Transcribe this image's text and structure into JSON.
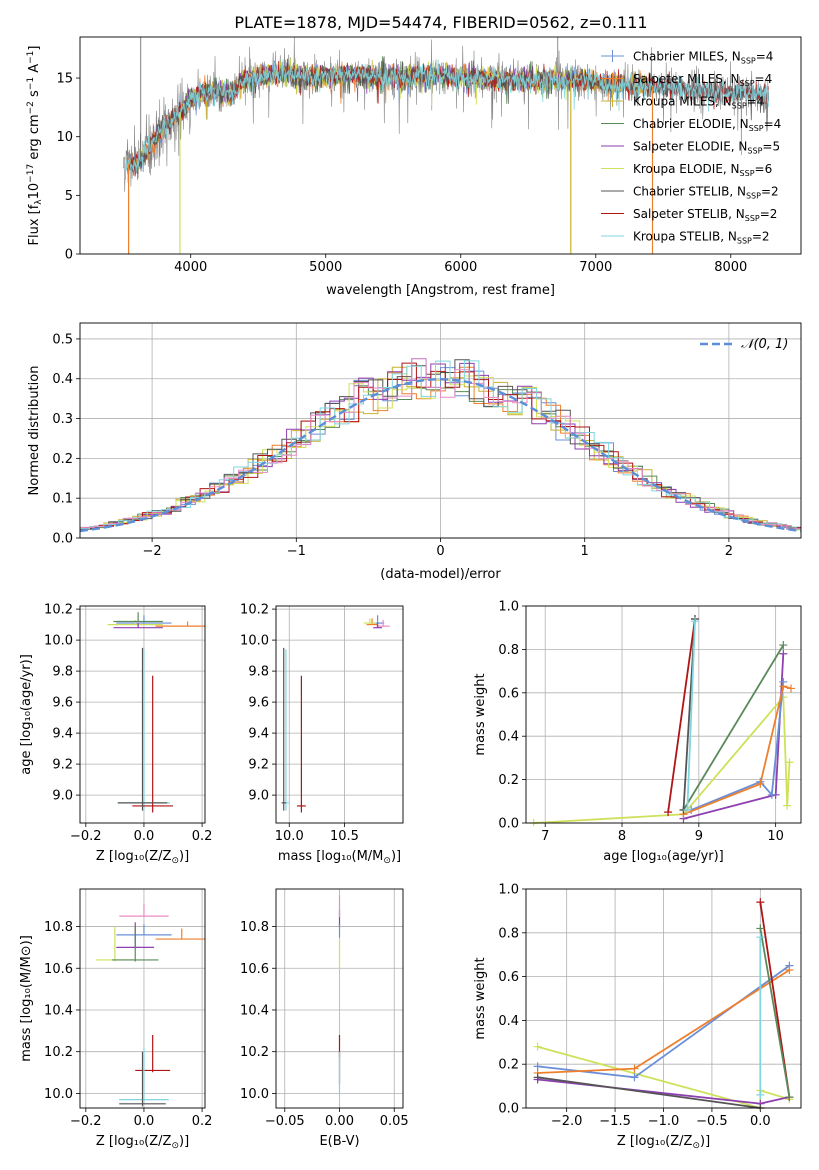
{
  "figure": {
    "title": "PLATE=1878, MJD=54474, FIBERID=0562, z=0.111"
  },
  "colors": {
    "chabrier_miles": "#6a8fd8",
    "salpeter_miles": "#ee7f2d",
    "kroupa_miles": "#c9b12e",
    "chabrier_elodie": "#5a8a5a",
    "salpeter_elodie": "#8e3fb0",
    "kroupa_elodie": "#cfe05a",
    "chabrier_stelib": "#555555",
    "salpeter_stelib": "#b01515",
    "kroupa_stelib": "#7fd6e0",
    "pink": "#e88bc4",
    "grid": "#b0b0b0",
    "normal": "#5b8fd9"
  },
  "chart_data": [
    {
      "type": "line",
      "id": "spectrum",
      "title": "PLATE=1878, MJD=54474, FIBERID=0562, z=0.111",
      "xlabel": "wavelength [Angstrom, rest frame]",
      "ylabel_main": "Flux [f",
      "ylabel_sub": "λ",
      "ylabel_rest": "10",
      "ylabel_exp": "−17",
      "ylabel_units": " erg cm",
      "ylabel_units_exp": "−2",
      "ylabel_units2": " s",
      "ylabel_units2_exp": "−1",
      "ylabel_units3": " A",
      "ylabel_units3_exp": "−1",
      "ylabel_close": "]",
      "xlim": [
        3180,
        8520
      ],
      "ylim": [
        0,
        18.5
      ],
      "xticks": [
        4000,
        5000,
        6000,
        7000,
        8000
      ],
      "yticks": [
        0,
        5,
        10,
        15
      ],
      "legend_position": "right",
      "legend": [
        {
          "label": "Chabrier MILES, N",
          "sub": "SSP",
          "suffix": "=4",
          "color_key": "chabrier_miles",
          "marker": "+"
        },
        {
          "label": "Salpeter MILES, N",
          "sub": "SSP",
          "suffix": "=4",
          "color_key": "salpeter_miles",
          "marker": "+"
        },
        {
          "label": "Kroupa MILES, N",
          "sub": "SSP",
          "suffix": "=4",
          "color_key": "kroupa_miles",
          "marker": "+"
        },
        {
          "label": "Chabrier ELODIE, N",
          "sub": "SSP",
          "suffix": "=4",
          "color_key": "chabrier_elodie",
          "marker": ""
        },
        {
          "label": "Salpeter ELODIE, N",
          "sub": "SSP",
          "suffix": "=5",
          "color_key": "salpeter_elodie",
          "marker": ""
        },
        {
          "label": "Kroupa ELODIE, N",
          "sub": "SSP",
          "suffix": "=6",
          "color_key": "kroupa_elodie",
          "marker": ""
        },
        {
          "label": "Chabrier STELIB, N",
          "sub": "SSP",
          "suffix": "=2",
          "color_key": "chabrier_stelib",
          "marker": ""
        },
        {
          "label": "Salpeter STELIB, N",
          "sub": "SSP",
          "suffix": "=2",
          "color_key": "salpeter_stelib",
          "marker": ""
        },
        {
          "label": "Kroupa STELIB, N",
          "sub": "SSP",
          "suffix": "=2",
          "color_key": "kroupa_stelib",
          "marker": ""
        }
      ],
      "continuum": [
        [
          3500,
          7.8
        ],
        [
          3600,
          7.6
        ],
        [
          3700,
          9.2
        ],
        [
          3800,
          10.8
        ],
        [
          3900,
          11.8
        ],
        [
          4000,
          13.2
        ],
        [
          4100,
          13.8
        ],
        [
          4200,
          13.9
        ],
        [
          4300,
          13.6
        ],
        [
          4400,
          14.8
        ],
        [
          4500,
          15.2
        ],
        [
          4700,
          15.4
        ],
        [
          4900,
          15.1
        ],
        [
          5100,
          15.3
        ],
        [
          5300,
          15.2
        ],
        [
          5500,
          15.1
        ],
        [
          5700,
          15.2
        ],
        [
          5900,
          15.1
        ],
        [
          6100,
          15.0
        ],
        [
          6300,
          14.9
        ],
        [
          6500,
          14.8
        ],
        [
          6700,
          14.9
        ],
        [
          6900,
          14.7
        ],
        [
          7100,
          14.5
        ],
        [
          7300,
          14.4
        ],
        [
          7500,
          14.2
        ],
        [
          7700,
          14.0
        ],
        [
          7900,
          13.8
        ],
        [
          8100,
          13.7
        ],
        [
          8280,
          13.5
        ]
      ],
      "dropouts": [
        {
          "x": 3540,
          "color_key": "salpeter_miles"
        },
        {
          "x": 3920,
          "color_key": "kroupa_elodie"
        },
        {
          "x": 6815,
          "color_key": "kroupa_miles"
        },
        {
          "x": 7420,
          "color_key": "salpeter_miles"
        }
      ],
      "spike": {
        "x": 6718,
        "ymax": 18.5
      }
    },
    {
      "type": "area",
      "id": "residuals",
      "xlabel": "(data-model)/error",
      "ylabel": "Normed distribution",
      "xlim": [
        -2.5,
        2.5
      ],
      "ylim": [
        0,
        0.54
      ],
      "xticks": [
        -2,
        -1,
        0,
        1,
        2
      ],
      "yticks": [
        0,
        0.1,
        0.2,
        0.3,
        0.4,
        0.5
      ],
      "legend": {
        "label": "𝒩(0, 1)",
        "position": "top-right"
      },
      "bin_width": 0.1,
      "series_count": 10
    },
    {
      "type": "scatter",
      "id": "age_vs_Z",
      "xlabel": "Z [log₁₀(Z/Z",
      "xlabel_sub": "⊙",
      "xlabel_close": ")]",
      "ylabel": "age  [log₁₀(age/yr)]",
      "xlim": [
        -0.22,
        0.21
      ],
      "ylim": [
        8.82,
        10.22
      ],
      "xticks": [
        -0.2,
        0.0,
        0.2
      ],
      "yticks": [
        9.0,
        9.2,
        9.4,
        9.6,
        9.8,
        10.0,
        10.2
      ],
      "points": [
        {
          "x": 0.0,
          "y": 10.11,
          "xerr": 0.19,
          "yerr": 0.05,
          "color_key": "chabrier_miles"
        },
        {
          "x": 0.15,
          "y": 10.09,
          "xerr": 0.22,
          "yerr": 0.03,
          "color_key": "salpeter_miles"
        },
        {
          "x": -0.03,
          "y": 10.1,
          "xerr": 0.19,
          "yerr": 0.03,
          "color_key": "kroupa_elodie"
        },
        {
          "x": -0.02,
          "y": 10.12,
          "xerr": 0.17,
          "yerr": 0.06,
          "color_key": "chabrier_elodie"
        },
        {
          "x": -0.02,
          "y": 10.08,
          "xerr": 0.17,
          "yerr": 0.03,
          "color_key": "salpeter_elodie"
        },
        {
          "x": 0.0,
          "y": 8.95,
          "xerr": 0.18,
          "yerr": 0.99,
          "color_key": "kroupa_stelib"
        },
        {
          "x": 0.03,
          "y": 8.93,
          "xerr": 0.14,
          "yerr": 0.84,
          "color_key": "salpeter_stelib"
        },
        {
          "x": -0.005,
          "y": 8.95,
          "xerr": 0.17,
          "yerr": 1.0,
          "color_key": "chabrier_stelib"
        }
      ]
    },
    {
      "type": "scatter",
      "id": "age_vs_mass",
      "xlabel": "mass [log₁₀(M/M",
      "xlabel_sub": "⊙",
      "xlabel_close": ")]",
      "ylabel": "",
      "xlim": [
        9.88,
        11.03
      ],
      "ylim": [
        8.82,
        10.22
      ],
      "xticks": [
        10.0,
        10.5
      ],
      "yticks": [
        9.0,
        9.2,
        9.4,
        9.6,
        9.8,
        10.0,
        10.2
      ],
      "points": [
        {
          "x": 10.8,
          "y": 10.11,
          "xerr": 0.12,
          "yerr": 0.05,
          "color_key": "chabrier_miles"
        },
        {
          "x": 10.75,
          "y": 10.1,
          "xerr": 0.1,
          "yerr": 0.04,
          "color_key": "salpeter_miles"
        },
        {
          "x": 10.85,
          "y": 10.09,
          "xerr": 0.12,
          "yerr": 0.04,
          "color_key": "pink"
        },
        {
          "x": 10.73,
          "y": 10.11,
          "xerr": 0.11,
          "yerr": 0.03,
          "color_key": "kroupa_elodie"
        },
        {
          "x": 10.8,
          "y": 10.08,
          "xerr": 0.08,
          "yerr": 0.03,
          "color_key": "salpeter_elodie"
        },
        {
          "x": 9.97,
          "y": 8.95,
          "xerr": 0.05,
          "yerr": 0.99,
          "color_key": "kroupa_stelib"
        },
        {
          "x": 10.11,
          "y": 8.93,
          "xerr": 0.08,
          "yerr": 0.84,
          "color_key": "salpeter_stelib"
        },
        {
          "x": 9.95,
          "y": 8.95,
          "xerr": 0.04,
          "yerr": 1.0,
          "color_key": "chabrier_stelib"
        }
      ]
    },
    {
      "type": "line",
      "id": "weight_vs_age",
      "xlabel": "age  [log₁₀(age/yr)]",
      "ylabel": "mass weight",
      "xlim": [
        6.75,
        10.33
      ],
      "ylim": [
        0,
        1.0
      ],
      "xticks": [
        7,
        8,
        9,
        10
      ],
      "yticks": [
        0.0,
        0.2,
        0.4,
        0.6,
        0.8,
        1.0
      ],
      "series": [
        {
          "color_key": "kroupa_elodie",
          "points": [
            [
              6.85,
              0.0
            ],
            [
              8.8,
              0.04
            ],
            [
              10.1,
              0.58
            ],
            [
              10.15,
              0.08
            ],
            [
              10.18,
              0.28
            ]
          ]
        },
        {
          "color_key": "salpeter_elodie",
          "points": [
            [
              8.8,
              0.02
            ],
            [
              10.0,
              0.13
            ],
            [
              10.1,
              0.78
            ]
          ]
        },
        {
          "color_key": "chabrier_elodie",
          "points": [
            [
              8.8,
              0.06
            ],
            [
              10.1,
              0.82
            ]
          ]
        },
        {
          "color_key": "chabrier_miles",
          "points": [
            [
              8.9,
              0.06
            ],
            [
              9.8,
              0.19
            ],
            [
              9.95,
              0.13
            ],
            [
              10.1,
              0.65
            ]
          ]
        },
        {
          "color_key": "salpeter_miles",
          "points": [
            [
              8.8,
              0.04
            ],
            [
              9.8,
              0.18
            ],
            [
              10.1,
              0.63
            ],
            [
              10.2,
              0.62
            ]
          ]
        },
        {
          "color_key": "salpeter_stelib",
          "points": [
            [
              8.6,
              0.05
            ],
            [
              8.95,
              0.94
            ]
          ]
        },
        {
          "color_key": "chabrier_stelib",
          "points": [
            [
              8.8,
              0.06
            ],
            [
              8.95,
              0.94
            ]
          ]
        },
        {
          "color_key": "kroupa_stelib",
          "points": [
            [
              8.85,
              0.06
            ],
            [
              8.95,
              0.93
            ]
          ]
        }
      ]
    },
    {
      "type": "scatter",
      "id": "mass_vs_Z",
      "xlabel": "Z [log₁₀(Z/Z",
      "xlabel_sub": "⊙",
      "xlabel_close": ")]",
      "ylabel": "mass [log₁₀(M/M⊙)]",
      "xlim": [
        -0.22,
        0.21
      ],
      "ylim": [
        9.93,
        10.98
      ],
      "xticks": [
        -0.2,
        0.0,
        0.2
      ],
      "yticks": [
        10.0,
        10.2,
        10.4,
        10.6,
        10.8
      ],
      "points": [
        {
          "x": 0.0,
          "y": 10.76,
          "xerr": 0.19,
          "yerr": 0.05,
          "color_key": "chabrier_miles"
        },
        {
          "x": 0.13,
          "y": 10.74,
          "xerr": 0.18,
          "yerr": 0.05,
          "color_key": "salpeter_miles"
        },
        {
          "x": 0.0,
          "y": 10.85,
          "xerr": 0.17,
          "yerr": 0.06,
          "color_key": "pink"
        },
        {
          "x": -0.03,
          "y": 10.7,
          "xerr": 0.13,
          "yerr": 0.12,
          "color_key": "salpeter_elodie"
        },
        {
          "x": -0.1,
          "y": 10.64,
          "xerr": 0.13,
          "yerr": 0.16,
          "color_key": "kroupa_elodie"
        },
        {
          "x": -0.03,
          "y": 10.64,
          "xerr": 0.16,
          "yerr": 0.16,
          "color_key": "chabrier_elodie"
        },
        {
          "x": 0.03,
          "y": 10.11,
          "xerr": 0.12,
          "yerr": 0.17,
          "color_key": "salpeter_stelib"
        },
        {
          "x": 0.0,
          "y": 9.97,
          "xerr": 0.17,
          "yerr": 0.25,
          "color_key": "kroupa_stelib"
        },
        {
          "x": -0.005,
          "y": 9.95,
          "xerr": 0.16,
          "yerr": 0.25,
          "color_key": "chabrier_stelib"
        }
      ]
    },
    {
      "type": "scatter",
      "id": "mass_vs_EBV",
      "xlabel": "E(B-V)",
      "ylabel": "",
      "xlim": [
        -0.058,
        0.058
      ],
      "ylim": [
        9.93,
        10.98
      ],
      "xticks": [
        -0.05,
        0.0,
        0.05
      ],
      "yticks": [
        10.0,
        10.2,
        10.4,
        10.6,
        10.8
      ],
      "points": [
        {
          "x": 0.0,
          "y": 10.8,
          "yerr": 0.08,
          "color_key": "salpeter_elodie"
        },
        {
          "x": 0.0,
          "y": 10.6,
          "yerr": 0.14,
          "color_key": "kroupa_elodie"
        },
        {
          "x": 0.0,
          "y": 10.85,
          "yerr": 0.1,
          "color_key": "pink"
        },
        {
          "x": 0.0,
          "y": 10.75,
          "yerr": 0.06,
          "color_key": "chabrier_miles"
        },
        {
          "x": 0.0,
          "y": 10.18,
          "yerr": 0.1,
          "color_key": "salpeter_stelib"
        },
        {
          "x": 0.0,
          "y": 10.05,
          "yerr": 0.15,
          "color_key": "chabrier_stelib"
        },
        {
          "x": 0.0,
          "y": 10.0,
          "yerr": 0.2,
          "color_key": "kroupa_stelib"
        }
      ]
    },
    {
      "type": "line",
      "id": "weight_vs_Z",
      "xlabel": "Z [log₁₀(Z/Z",
      "xlabel_sub": "⊙",
      "xlabel_close": ")]",
      "ylabel": "mass weight",
      "xlim": [
        -2.42,
        0.42
      ],
      "ylim": [
        0,
        1.0
      ],
      "xticks": [
        -2.0,
        -1.5,
        -1.0,
        -0.5,
        0.0
      ],
      "yticks": [
        0.0,
        0.2,
        0.4,
        0.6,
        0.8,
        1.0
      ],
      "series": [
        {
          "color_key": "kroupa_elodie",
          "points": [
            [
              -2.3,
              0.28
            ],
            [
              0.0,
              0.0
            ],
            [
              0.0,
              0.08
            ],
            [
              0.3,
              0.04
            ]
          ]
        },
        {
          "color_key": "chabrier_miles",
          "points": [
            [
              -2.3,
              0.19
            ],
            [
              -1.3,
              0.14
            ],
            [
              0.3,
              0.65
            ]
          ]
        },
        {
          "color_key": "salpeter_miles",
          "points": [
            [
              -2.3,
              0.16
            ],
            [
              -1.3,
              0.18
            ],
            [
              0.3,
              0.63
            ]
          ]
        },
        {
          "color_key": "salpeter_elodie",
          "points": [
            [
              -2.3,
              0.13
            ],
            [
              0.0,
              0.02
            ],
            [
              0.3,
              0.05
            ]
          ]
        },
        {
          "color_key": "chabrier_stelib",
          "points": [
            [
              -2.3,
              0.14
            ],
            [
              0.0,
              0.0
            ]
          ]
        },
        {
          "color_key": "salpeter_stelib",
          "points": [
            [
              0.0,
              0.94
            ],
            [
              0.3,
              0.05
            ]
          ]
        },
        {
          "color_key": "chabrier_elodie",
          "points": [
            [
              0.0,
              0.82
            ],
            [
              0.3,
              0.05
            ]
          ]
        },
        {
          "color_key": "kroupa_stelib",
          "points": [
            [
              0.0,
              0.78
            ],
            [
              0.0,
              0.06
            ]
          ]
        }
      ]
    }
  ]
}
